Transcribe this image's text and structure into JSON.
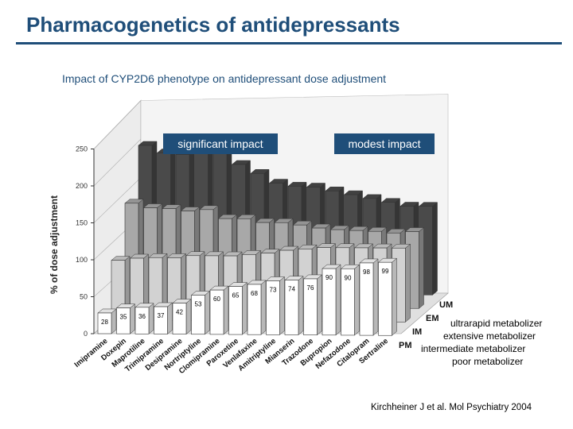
{
  "header": {
    "title": "Pharmacogenetics of antidepressants",
    "subtitle": "Impact of CYP2D6 phenotype on antidepressant dose adjustment"
  },
  "callouts": {
    "significant": "significant impact",
    "modest": "modest impact"
  },
  "legend": {
    "um": "ultrarapid metabolizer",
    "em": "extensive metabolizer",
    "im": "intermediate metabolizer",
    "pm": "poor metabolizer"
  },
  "citation": "Kirchheiner J et al. Mol Psychiatry 2004",
  "chart_data": {
    "type": "bar",
    "subtype": "3d-grouped",
    "title": "Impact of CYP2D6 phenotype on antidepressant dose adjustment",
    "ylabel": "% of dose adjustment",
    "xlabel": "",
    "ylim": [
      0,
      250
    ],
    "yticks": [
      0,
      50,
      100,
      150,
      200,
      250
    ],
    "categories": [
      "Imipramine",
      "Doxepin",
      "Maprotiline",
      "Trimipramine",
      "Desipramine",
      "Nortriptyline",
      "Clomipramine",
      "Paroxetine",
      "Venlafaxine",
      "Amitriptyline",
      "Mianserin",
      "Trazodone",
      "Bupropion",
      "Nefazodone",
      "Citalopram",
      "Sertraline"
    ],
    "series": [
      {
        "name": "PM",
        "values": [
          28,
          35,
          36,
          37,
          42,
          53,
          60,
          65,
          68,
          73,
          74,
          76,
          90,
          90,
          98,
          99
        ],
        "color": "#ffffff"
      },
      {
        "name": "IM",
        "values": [
          81,
          84,
          85,
          85,
          88,
          88,
          88,
          90,
          92,
          96,
          98,
          100,
          100,
          100,
          100,
          100
        ],
        "color": "#d2d2d2"
      },
      {
        "name": "EM",
        "values": [
          140,
          134,
          133,
          130,
          132,
          120,
          120,
          115,
          115,
          112,
          108,
          106,
          105,
          104,
          102,
          104
        ],
        "color": "#a8a8a8"
      },
      {
        "name": "UM",
        "values": [
          200,
          190,
          188,
          190,
          190,
          175,
          163,
          150,
          146,
          145,
          140,
          135,
          130,
          125,
          120,
          120
        ],
        "color": "#4a4a4a"
      }
    ],
    "series_labels": [
      "PM",
      "IM",
      "EM",
      "UM"
    ],
    "data_labels": [
      28,
      35,
      36,
      37,
      42,
      53,
      60,
      65,
      68,
      73,
      74,
      76,
      90,
      90,
      98,
      99
    ]
  }
}
